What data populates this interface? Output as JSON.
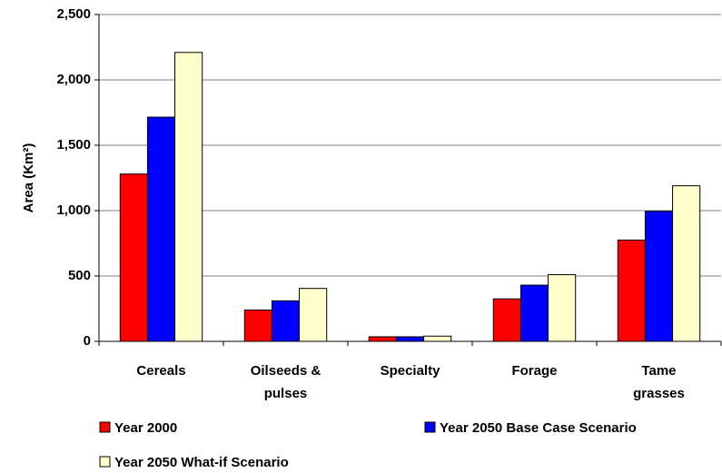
{
  "chart_data": {
    "type": "bar",
    "y_label": "Area (Km²)",
    "categories": [
      "Cereals",
      "Oilseeds & pulses",
      "Specialty",
      "Forage",
      "Tame grasses"
    ],
    "series": [
      {
        "name": "Year 2000",
        "color": "#ff0000",
        "values": [
          1280,
          240,
          35,
          325,
          775
        ]
      },
      {
        "name": "Year 2050 Base Case Scenario",
        "color": "#0000ff",
        "values": [
          1715,
          310,
          35,
          430,
          995
        ]
      },
      {
        "name": "Year 2050 What-if Scenario",
        "color": "#ffffcc",
        "values": [
          2210,
          405,
          40,
          510,
          1190
        ]
      }
    ],
    "ylim": [
      0,
      2500
    ],
    "yticks": [
      0,
      500,
      {
        "value": 1000,
        "label": "1,000"
      },
      {
        "value": 1500,
        "label": "1,500"
      },
      {
        "value": 2000,
        "label": "2,000"
      },
      {
        "value": 2500,
        "label": "2,500"
      }
    ],
    "grid": true
  }
}
